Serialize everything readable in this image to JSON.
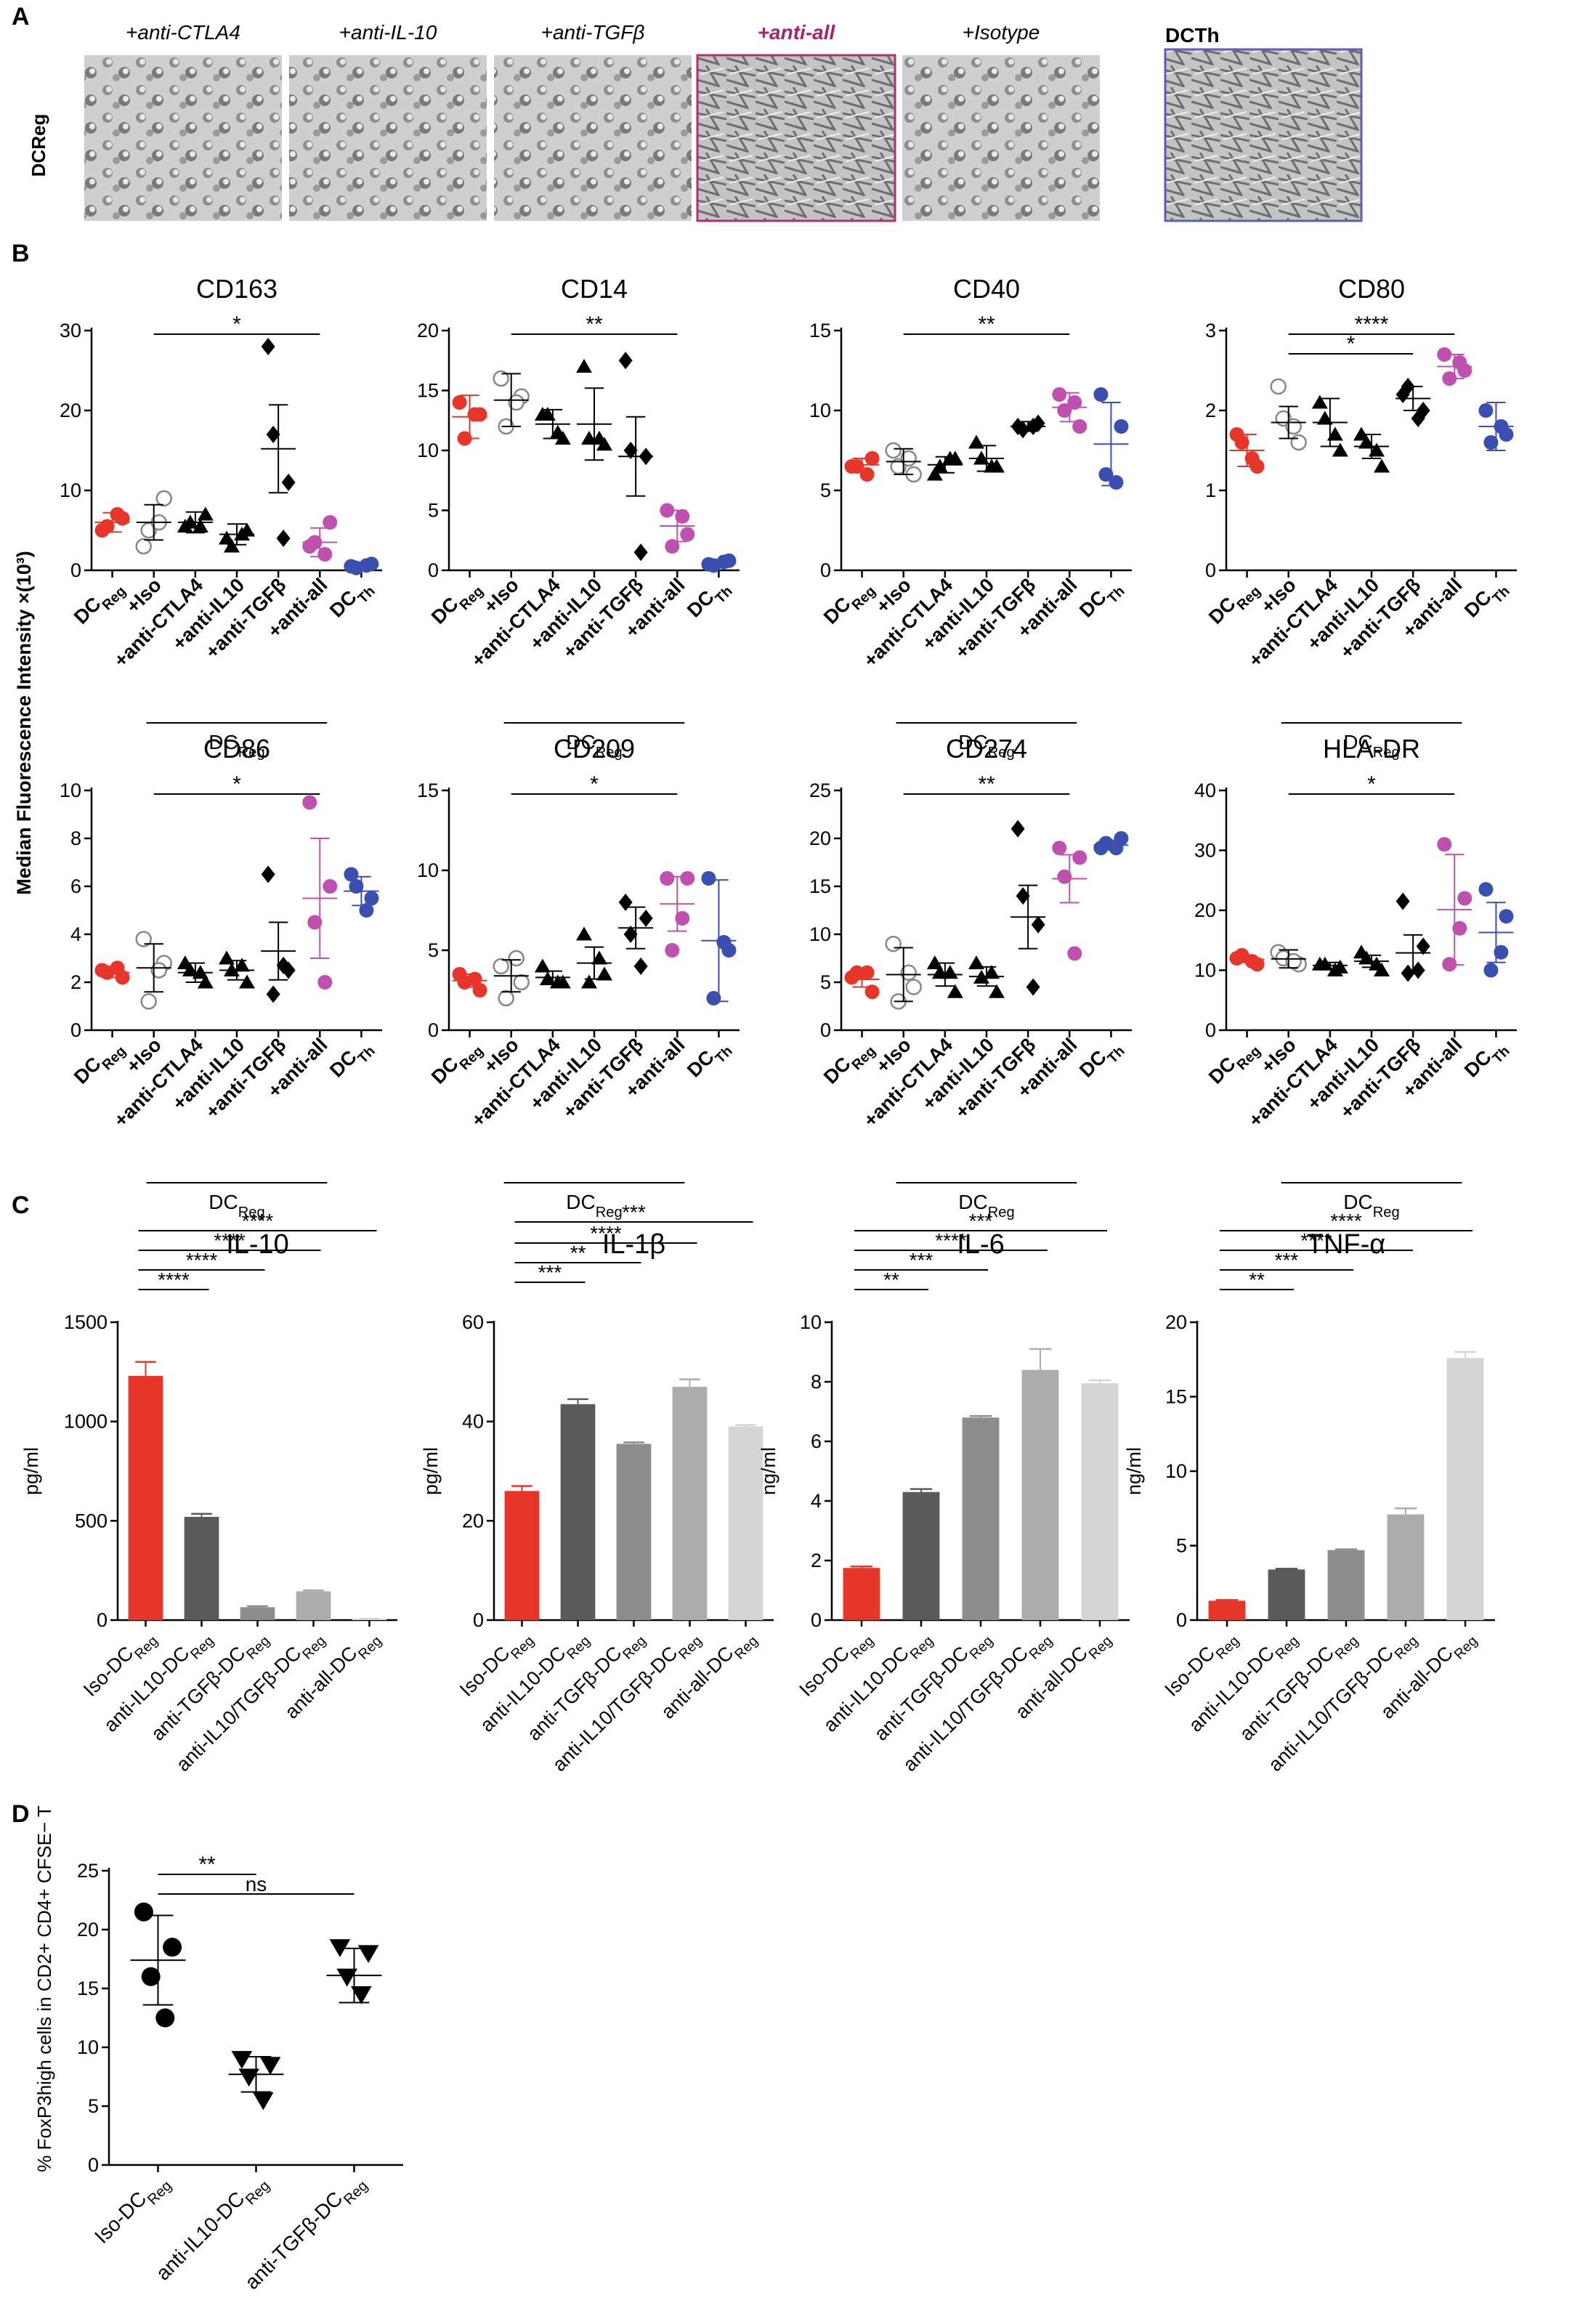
{
  "figure": {
    "panel_letters": {
      "A": "A",
      "B": "B",
      "C": "C",
      "D": "D"
    },
    "y_axis_shared_label": "Median Fluorescence Intensity ×(10³)",
    "colors": {
      "red": "#e8352a",
      "open": "#ffffff",
      "black": "#000000",
      "magenta": "#c050b0",
      "blue": "#3a4fb0",
      "label_magenta": "#a8236e"
    }
  },
  "panel_a": {
    "row_label": "DCReg",
    "images": [
      {
        "label": "+anti-CTLA4",
        "border": "none"
      },
      {
        "label": "+anti-IL-10",
        "border": "none"
      },
      {
        "label": "+anti-TGFβ",
        "border": "none"
      },
      {
        "label": "+anti-all",
        "border": "magenta"
      },
      {
        "label": "+Isotype",
        "border": "none"
      }
    ],
    "dcth_label": "DCTh"
  },
  "chart_data": [
    {
      "type": "scatter",
      "title": "CD163",
      "ylim": [
        0,
        30
      ],
      "yticks": [
        0,
        10,
        20,
        30
      ],
      "categories": [
        "DCReg",
        "+Iso",
        "+anti-CTLA4",
        "+anti-IL10",
        "+anti-TGFβ",
        "+anti-all",
        "DCTh"
      ],
      "points": [
        [
          5,
          6.5,
          5.5,
          7
        ],
        [
          3,
          9,
          5,
          6
        ],
        [
          5.5,
          7,
          6,
          5.5
        ],
        [
          4,
          5,
          3,
          4.5
        ],
        [
          28,
          11,
          17,
          4
        ],
        [
          3,
          6,
          3.5,
          2
        ],
        [
          0.5,
          0.8,
          0.3,
          0.6
        ]
      ],
      "means": [
        6,
        6,
        6,
        4.5,
        15.2,
        3.5,
        0.6
      ],
      "errs": [
        1.2,
        2.2,
        1.3,
        1.3,
        5.5,
        1.8,
        0.2
      ],
      "bracket": {
        "from": 1,
        "to": 5,
        "label": "*"
      },
      "group_label": "DCReg"
    },
    {
      "type": "scatter",
      "title": "CD14",
      "ylim": [
        0,
        20
      ],
      "yticks": [
        0,
        5,
        10,
        15,
        20
      ],
      "categories": [
        "DCReg",
        "+Iso",
        "+anti-CTLA4",
        "+anti-IL10",
        "+anti-TGFβ",
        "+anti-all",
        "DCTh"
      ],
      "points": [
        [
          14,
          13,
          11,
          13
        ],
        [
          16,
          14.5,
          12,
          14
        ],
        [
          13,
          11,
          13,
          11.5
        ],
        [
          17,
          10.5,
          11,
          11
        ],
        [
          17.5,
          9.5,
          10,
          1.5
        ],
        [
          5,
          3,
          2,
          4.5
        ],
        [
          0.5,
          0.8,
          0.4,
          0.7
        ]
      ],
      "means": [
        12.8,
        14.2,
        12.2,
        12.2,
        9.5,
        3.7,
        0.6
      ],
      "errs": [
        1.8,
        2.2,
        1.2,
        3,
        3.3,
        1.3,
        0.2
      ],
      "bracket": {
        "from": 1,
        "to": 5,
        "label": "**"
      },
      "group_label": "DCReg"
    },
    {
      "type": "scatter",
      "title": "CD40",
      "ylim": [
        0,
        15
      ],
      "yticks": [
        0,
        5,
        10,
        15
      ],
      "categories": [
        "DCReg",
        "+Iso",
        "+anti-CTLA4",
        "+anti-IL10",
        "+anti-TGFβ",
        "+anti-all",
        "DCTh"
      ],
      "points": [
        [
          6.5,
          7,
          6.5,
          6
        ],
        [
          7.5,
          6,
          6.5,
          7
        ],
        [
          6,
          7,
          6.5,
          7
        ],
        [
          8,
          6.5,
          7,
          6.5
        ],
        [
          9,
          9.2,
          8.8,
          9
        ],
        [
          11,
          9,
          10,
          10.5
        ],
        [
          11,
          9,
          6,
          5.5
        ]
      ],
      "means": [
        6.6,
        6.8,
        6.6,
        7,
        9,
        10.2,
        7.9
      ],
      "errs": [
        0.4,
        0.8,
        0.5,
        0.8,
        0.3,
        0.9,
        2.6
      ],
      "bracket": {
        "from": 1,
        "to": 5,
        "label": "**"
      },
      "group_label": "DCReg"
    },
    {
      "type": "scatter",
      "title": "CD80",
      "ylim": [
        0,
        3
      ],
      "yticks": [
        0,
        1,
        2,
        3
      ],
      "categories": [
        "DCReg",
        "+Iso",
        "+anti-CTLA4",
        "+anti-IL10",
        "+anti-TGFβ",
        "+anti-all",
        "DCTh"
      ],
      "points": [
        [
          1.7,
          1.3,
          1.6,
          1.4
        ],
        [
          2.3,
          1.6,
          1.9,
          1.8
        ],
        [
          2.1,
          1.5,
          1.9,
          1.7
        ],
        [
          1.7,
          1.3,
          1.6,
          1.5
        ],
        [
          2.2,
          2.0,
          2.3,
          1.9
        ],
        [
          2.7,
          2.5,
          2.4,
          2.6
        ],
        [
          2.0,
          1.7,
          1.6,
          1.8
        ]
      ],
      "means": [
        1.5,
        1.85,
        1.85,
        1.55,
        2.15,
        2.55,
        1.8
      ],
      "errs": [
        0.2,
        0.2,
        0.3,
        0.15,
        0.15,
        0.15,
        0.3
      ],
      "brackets": [
        {
          "from": 1,
          "to": 5,
          "label": "****"
        },
        {
          "from": 1,
          "to": 4,
          "label": "*"
        }
      ],
      "group_label": "DCReg"
    },
    {
      "type": "scatter",
      "title": "CD86",
      "ylim": [
        0,
        10
      ],
      "yticks": [
        0,
        2,
        4,
        6,
        8,
        10
      ],
      "categories": [
        "DCReg",
        "+Iso",
        "+anti-CTLA4",
        "+anti-IL10",
        "+anti-TGFβ",
        "+anti-all",
        "DCTh"
      ],
      "points": [
        [
          2.5,
          2.2,
          2.4,
          2.6
        ],
        [
          3.8,
          2.8,
          1.2,
          2.5
        ],
        [
          2.8,
          2,
          2.5,
          2.4
        ],
        [
          3,
          2,
          2.5,
          2.7
        ],
        [
          6.5,
          2.5,
          1.5,
          2.7
        ],
        [
          9.5,
          6,
          4.5,
          2
        ],
        [
          6.5,
          5.5,
          6,
          5
        ]
      ],
      "means": [
        2.4,
        2.6,
        2.4,
        2.5,
        3.3,
        5.5,
        5.8
      ],
      "errs": [
        0.2,
        1,
        0.4,
        0.4,
        1.2,
        2.5,
        0.6
      ],
      "bracket": {
        "from": 1,
        "to": 5,
        "label": "*"
      },
      "group_label": "DCReg"
    },
    {
      "type": "scatter",
      "title": "CD209",
      "ylim": [
        0,
        15
      ],
      "yticks": [
        0,
        5,
        10,
        15
      ],
      "categories": [
        "DCReg",
        "+Iso",
        "+anti-CTLA4",
        "+anti-IL10",
        "+anti-TGFβ",
        "+anti-all",
        "DCTh"
      ],
      "points": [
        [
          3.5,
          2.5,
          3,
          3.2
        ],
        [
          4,
          3,
          2,
          4.5
        ],
        [
          4,
          3,
          3.2,
          3
        ],
        [
          6,
          3.5,
          3,
          4.5
        ],
        [
          8,
          7,
          6,
          4
        ],
        [
          9.5,
          9.5,
          5,
          7
        ],
        [
          9.5,
          5,
          2,
          5.5
        ]
      ],
      "means": [
        3.1,
        3.4,
        3.3,
        4.2,
        6.4,
        7.9,
        5.6
      ],
      "errs": [
        0.4,
        1,
        0.4,
        1,
        1.3,
        1.7,
        3.8
      ],
      "bracket": {
        "from": 1,
        "to": 5,
        "label": "*"
      },
      "group_label": "DCReg"
    },
    {
      "type": "scatter",
      "title": "CD274",
      "ylim": [
        0,
        25
      ],
      "yticks": [
        0,
        5,
        10,
        15,
        20,
        25
      ],
      "categories": [
        "DCReg",
        "+Iso",
        "+anti-CTLA4",
        "+anti-IL10",
        "+anti-TGFβ",
        "+anti-all",
        "DCTh"
      ],
      "points": [
        [
          5.5,
          4,
          6,
          6
        ],
        [
          9,
          4.5,
          3,
          6
        ],
        [
          7,
          4,
          6,
          6
        ],
        [
          7,
          4,
          5.5,
          6
        ],
        [
          21,
          11,
          14,
          4.5
        ],
        [
          19,
          18,
          16,
          8
        ],
        [
          19,
          20,
          19.5,
          19
        ]
      ],
      "means": [
        5.3,
        5.8,
        5.8,
        5.6,
        11.8,
        15.8,
        19.3
      ],
      "errs": [
        0.8,
        2.8,
        1.2,
        1,
        3.3,
        2.5,
        0.5
      ],
      "bracket": {
        "from": 1,
        "to": 5,
        "label": "**"
      },
      "group_label": "DCReg"
    },
    {
      "type": "scatter",
      "title": "HLA-DR",
      "ylim": [
        0,
        40
      ],
      "yticks": [
        0,
        10,
        20,
        30,
        40
      ],
      "categories": [
        "DCReg",
        "+Iso",
        "+anti-CTLA4",
        "+anti-IL10",
        "+anti-TGFβ",
        "+anti-all",
        "DCTh"
      ],
      "points": [
        [
          12,
          11,
          12.5,
          11.5
        ],
        [
          13,
          11,
          12,
          11.5
        ],
        [
          11,
          10.5,
          11,
          10
        ],
        [
          13,
          10,
          12,
          11
        ],
        [
          21.5,
          14,
          9.5,
          10
        ],
        [
          31,
          22,
          11,
          17
        ],
        [
          23.5,
          19,
          10,
          13
        ]
      ],
      "means": [
        11.8,
        11.9,
        10.8,
        11.5,
        12.9,
        20.1,
        16.3
      ],
      "errs": [
        0.5,
        1.5,
        0.5,
        1,
        3,
        9.2,
        5
      ],
      "bracket": {
        "from": 1,
        "to": 5,
        "label": "*"
      },
      "group_label": "DCReg"
    },
    {
      "type": "bar",
      "title": "IL-10",
      "ylabel": "pg/ml",
      "ylim": [
        0,
        1500
      ],
      "yticks": [
        0,
        500,
        1000,
        1500
      ],
      "categories": [
        "Iso-DCReg",
        "anti-IL10-DCReg",
        "anti-TGFβ-DCReg",
        "anti-IL10/TGFβ-DCReg",
        "anti-all-DCReg"
      ],
      "values": [
        1230,
        520,
        65,
        145,
        5
      ],
      "errs": [
        70,
        15,
        5,
        5,
        2
      ],
      "brackets": [
        {
          "from": 0,
          "to": 1,
          "label": "****"
        },
        {
          "from": 0,
          "to": 2,
          "label": "****"
        },
        {
          "from": 0,
          "to": 3,
          "label": "****"
        },
        {
          "from": 0,
          "to": 4,
          "label": "****"
        }
      ]
    },
    {
      "type": "bar",
      "title": "IL-1β",
      "ylabel": "pg/ml",
      "ylim": [
        0,
        60
      ],
      "yticks": [
        0,
        20,
        40,
        60
      ],
      "categories": [
        "Iso-DCReg",
        "anti-IL10-DCReg",
        "anti-TGFβ-DCReg",
        "anti-IL10/TGFβ-DCReg",
        "anti-all-DCReg"
      ],
      "values": [
        26,
        43.5,
        35.5,
        47,
        39
      ],
      "errs": [
        1,
        1,
        0.3,
        1.5,
        0.3
      ],
      "brackets": [
        {
          "from": 0,
          "to": 1,
          "label": "***"
        },
        {
          "from": 0,
          "to": 2,
          "label": "**"
        },
        {
          "from": 0,
          "to": 3,
          "label": "****"
        },
        {
          "from": 0,
          "to": 4,
          "label": "***"
        }
      ]
    },
    {
      "type": "bar",
      "title": "IL-6",
      "ylabel": "ng/ml",
      "ylim": [
        0,
        10
      ],
      "yticks": [
        0,
        2,
        4,
        6,
        8,
        10
      ],
      "categories": [
        "Iso-DCReg",
        "anti-IL10-DCReg",
        "anti-TGFβ-DCReg",
        "anti-IL10/TGFβ-DCReg",
        "anti-all-DCReg"
      ],
      "values": [
        1.75,
        4.3,
        6.8,
        8.4,
        7.95
      ],
      "errs": [
        0.05,
        0.1,
        0.05,
        0.7,
        0.1
      ],
      "brackets": [
        {
          "from": 0,
          "to": 1,
          "label": "**"
        },
        {
          "from": 0,
          "to": 2,
          "label": "***"
        },
        {
          "from": 0,
          "to": 3,
          "label": "****"
        },
        {
          "from": 0,
          "to": 4,
          "label": "***"
        }
      ]
    },
    {
      "type": "bar",
      "title": "TNF-α",
      "ylabel": "ng/ml",
      "ylim": [
        0,
        20
      ],
      "yticks": [
        0,
        5,
        10,
        15,
        20
      ],
      "categories": [
        "Iso-DCReg",
        "anti-IL10-DCReg",
        "anti-TGFβ-DCReg",
        "anti-IL10/TGFβ-DCReg",
        "anti-all-DCReg"
      ],
      "values": [
        1.3,
        3.4,
        4.7,
        7.1,
        17.6
      ],
      "errs": [
        0.05,
        0.05,
        0.05,
        0.4,
        0.4
      ],
      "brackets": [
        {
          "from": 0,
          "to": 1,
          "label": "**"
        },
        {
          "from": 0,
          "to": 2,
          "label": "***"
        },
        {
          "from": 0,
          "to": 3,
          "label": "****"
        },
        {
          "from": 0,
          "to": 4,
          "label": "****"
        }
      ]
    },
    {
      "type": "scatter",
      "title": "",
      "ylabel": "% FoxP3high cells in CD2+ CD4+ CFSE− T",
      "ylim": [
        0,
        25
      ],
      "yticks": [
        0,
        5,
        10,
        15,
        20,
        25
      ],
      "categories": [
        "Iso-DCReg",
        "anti-IL10-DCReg",
        "anti-TGFβ-DCReg"
      ],
      "points": [
        [
          21.5,
          18.5,
          16,
          12.5
        ],
        [
          9,
          8.5,
          7.5,
          5.5
        ],
        [
          18.5,
          18,
          16,
          14.5
        ]
      ],
      "means": [
        17.4,
        7.7,
        16.1
      ],
      "errs": [
        3.8,
        1.5,
        2.3
      ],
      "brackets": [
        {
          "from": 0,
          "to": 1,
          "label": "**"
        },
        {
          "from": 0,
          "to": 2,
          "label": "ns"
        }
      ]
    }
  ]
}
